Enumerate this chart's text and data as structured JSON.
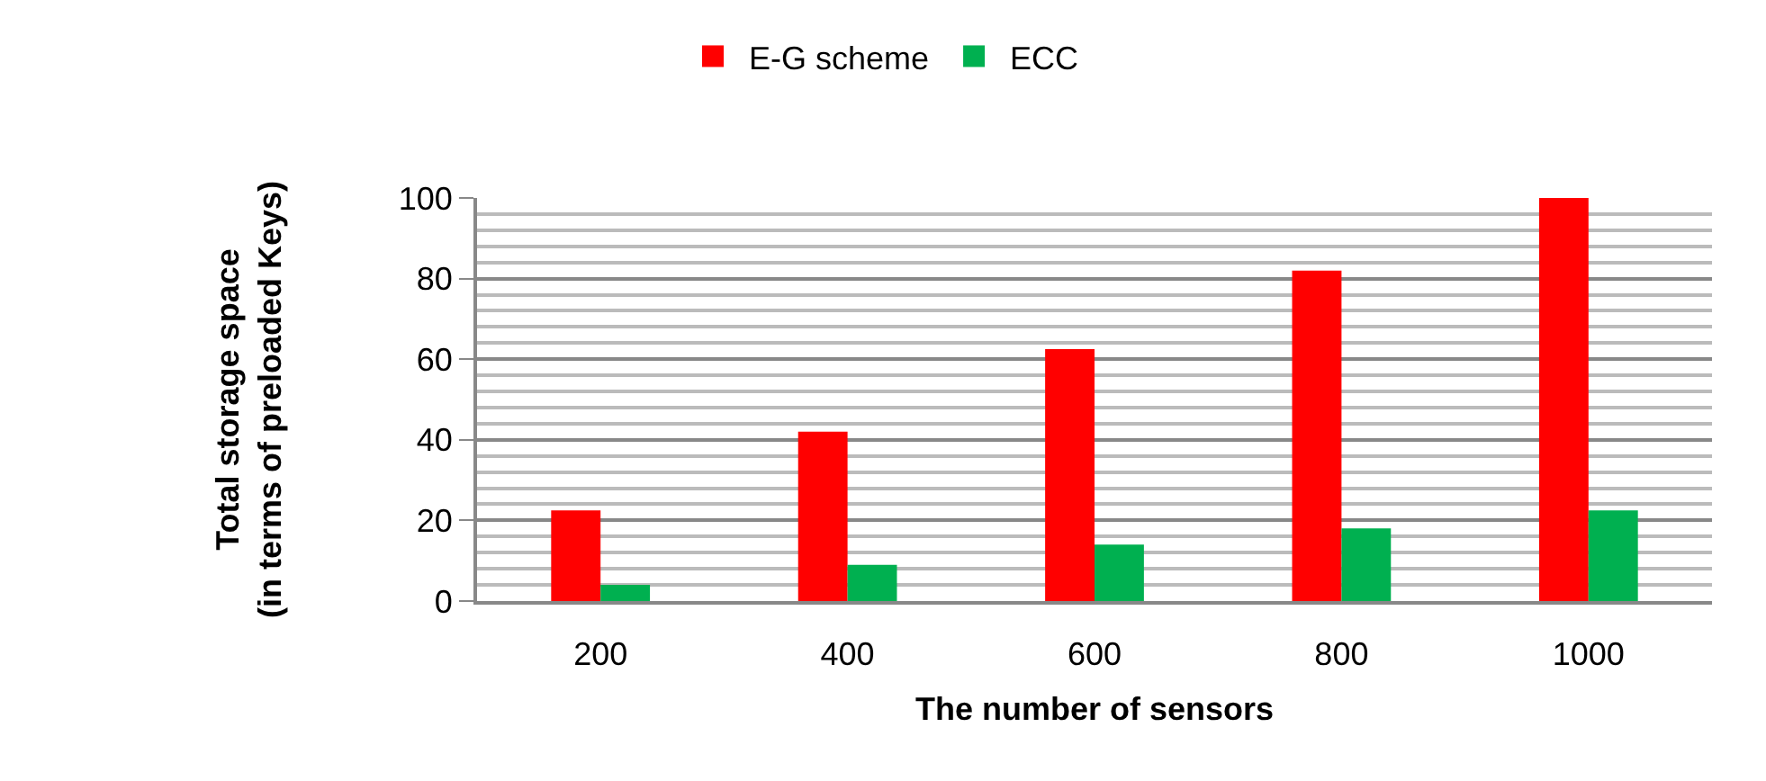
{
  "chart_data": {
    "type": "bar",
    "categories": [
      "200",
      "400",
      "600",
      "800",
      "1000"
    ],
    "series": [
      {
        "name": "E-G scheme",
        "color": "#ff0000",
        "values": [
          22.5,
          42,
          62.5,
          82,
          100
        ]
      },
      {
        "name": "ECC",
        "color": "#00b050",
        "values": [
          4,
          9,
          14,
          18,
          22.5
        ]
      }
    ],
    "xlabel": "The number of sensors",
    "ylabel": "Total storage space\n(in terms of preloaded Keys)",
    "ylim": [
      0,
      100
    ],
    "yticks": [
      0,
      20,
      40,
      60,
      80,
      100
    ],
    "grid": "y",
    "legend": "top"
  }
}
